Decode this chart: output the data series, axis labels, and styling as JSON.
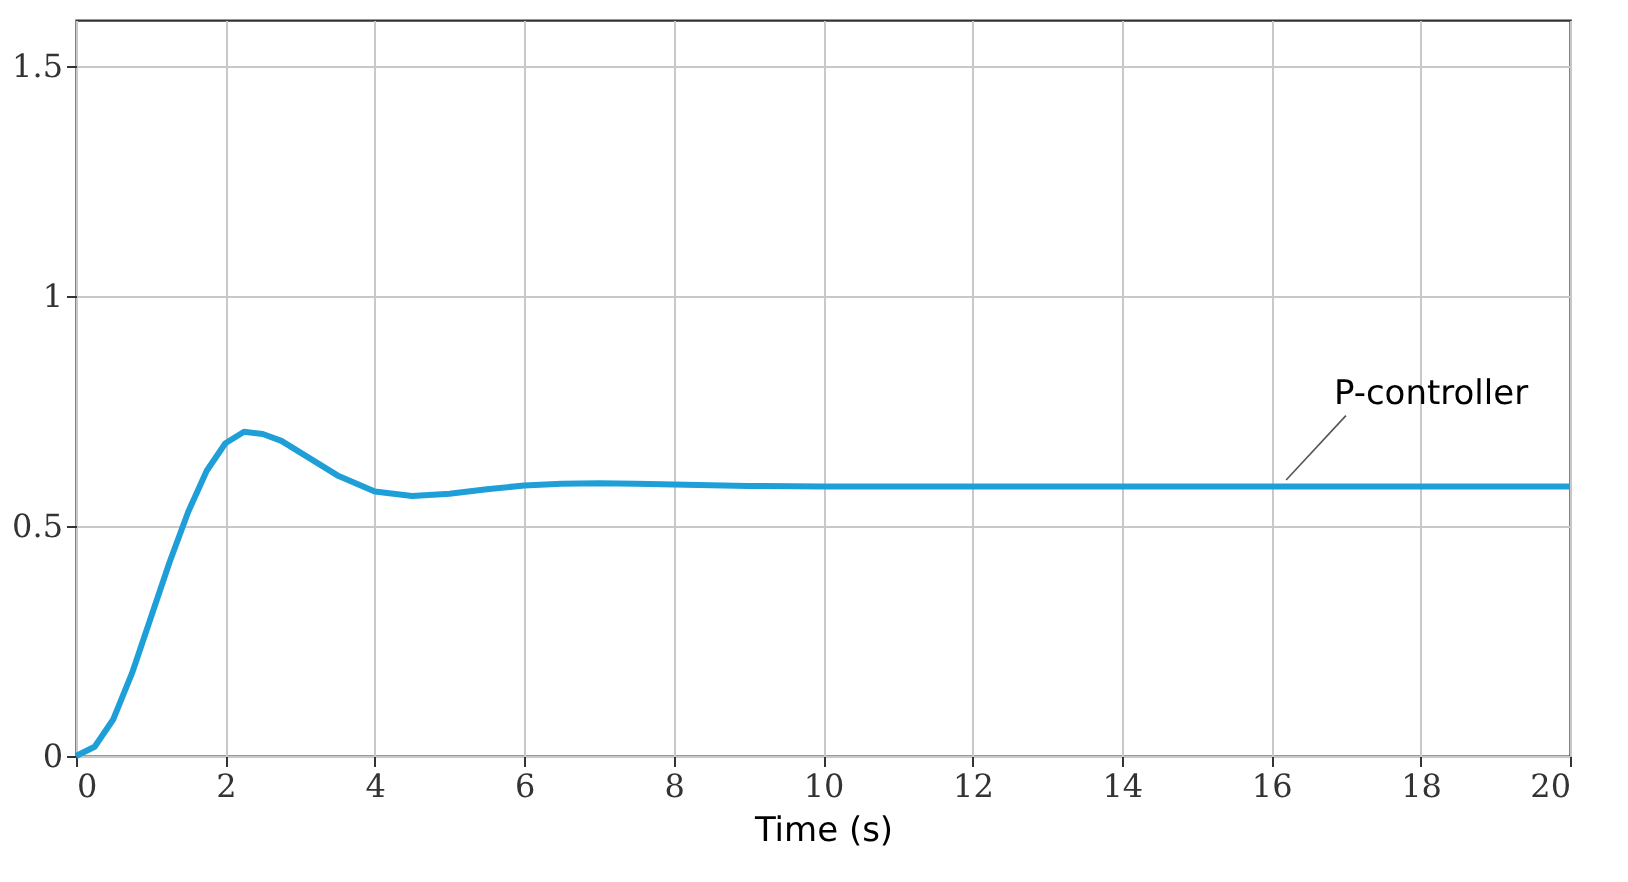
{
  "chart_data": {
    "type": "line",
    "xlabel": "Time (s)",
    "xlim": [
      0,
      20
    ],
    "xticks": [
      0,
      2,
      4,
      6,
      8,
      10,
      12,
      14,
      16,
      18,
      20
    ],
    "ylim": [
      0,
      1.6
    ],
    "yticks": [
      0,
      0.5,
      1,
      1.5
    ],
    "grid": true,
    "line_style": "solid",
    "marker": "none",
    "x": [
      0,
      0.25,
      0.5,
      0.75,
      1,
      1.25,
      1.5,
      1.75,
      2,
      2.25,
      2.5,
      2.75,
      3,
      3.5,
      4,
      4.5,
      5,
      5.5,
      6,
      6.5,
      7,
      7.5,
      8,
      9,
      10,
      12,
      14,
      16,
      18,
      20
    ],
    "series": [
      {
        "color": "#1f9fd8",
        "values": [
          0,
          0.02,
          0.08,
          0.18,
          0.3,
          0.42,
          0.53,
          0.62,
          0.68,
          0.705,
          0.7,
          0.685,
          0.66,
          0.61,
          0.575,
          0.565,
          0.57,
          0.58,
          0.588,
          0.592,
          0.593,
          0.592,
          0.59,
          0.587,
          0.586,
          0.586,
          0.586,
          0.586,
          0.586,
          0.586
        ]
      }
    ],
    "annotations": [
      {
        "text": "P-controller",
        "x": 16.2,
        "y": 0.6
      }
    ]
  }
}
